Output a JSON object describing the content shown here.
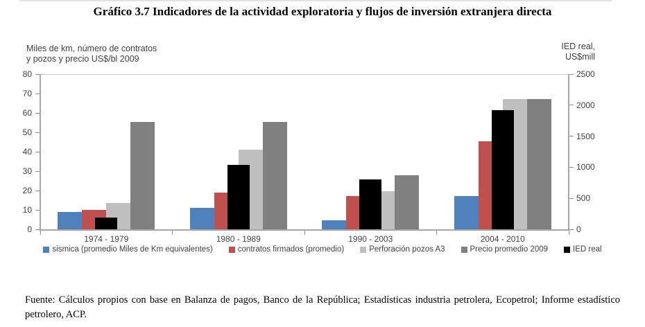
{
  "title": "Gráfico 3.7 Indicadores de la actividad exploratoria  y flujos de inversión extranjera directa",
  "chart_data": {
    "type": "bar",
    "categories": [
      "1974 - 1979",
      "1980 - 1989",
      "1990 - 2003",
      "2004 - 2010"
    ],
    "series": [
      {
        "name": "sismica (promedio Miles de Km equivalentes)",
        "color": "#4F81BD",
        "axis": "left",
        "overlay": false,
        "values": [
          9,
          11,
          4.5,
          17
        ]
      },
      {
        "name": "contratos firmados (promedio)",
        "color": "#C0504D",
        "axis": "left",
        "overlay": false,
        "values": [
          10,
          19,
          17,
          45.5
        ]
      },
      {
        "name": "Perforación pozos A3",
        "color": "#BFBFBF",
        "axis": "left",
        "overlay": false,
        "values": [
          13.5,
          41,
          19.5,
          67
        ]
      },
      {
        "name": "Precio promedio 2009",
        "color": "#808080",
        "axis": "left",
        "overlay": false,
        "values": [
          55.5,
          55.5,
          28,
          67
        ]
      },
      {
        "name": "IED real",
        "color": "#000000",
        "axis": "right",
        "overlay": true,
        "values": [
          185,
          1040,
          805,
          1915
        ]
      }
    ],
    "left_axis": {
      "title_line1": "Miles de km,  número de contratos",
      "title_line2": "y pozos y precio US$/bl 2009",
      "min": 0,
      "max": 80,
      "step": 10
    },
    "right_axis": {
      "title_line1": "IED real,",
      "title_line2": "US$mill",
      "min": 0,
      "max": 2500,
      "step": 500
    },
    "legend_position": "bottom",
    "grid": false
  },
  "footer": {
    "text": "Fuente: Cálculos propios con base en Balanza de pagos, Banco de la República; Estadísticas industria petrolera, Ecopetrol; Informe estadístico petrolero, ACP."
  }
}
